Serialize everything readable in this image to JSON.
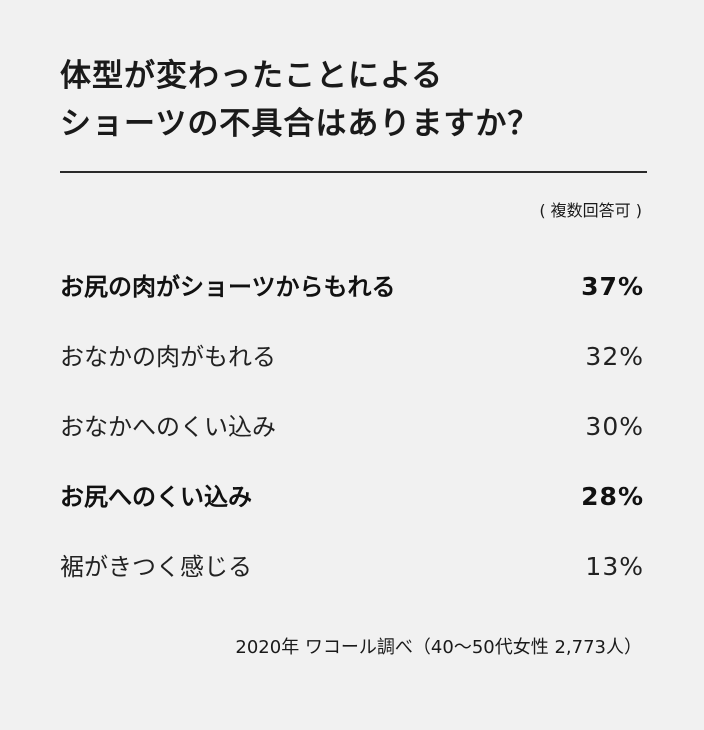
{
  "title": {
    "line1": "体型が変わったことによる",
    "line2": "ショーツの不具合はありますか？"
  },
  "note": "( 複数回答可 )",
  "source": "2020年 ワコール調べ（40〜50代女性 2,773人）",
  "chart_data": {
    "type": "table",
    "title": "体型が変わったことによるショーツの不具合はありますか？",
    "note": "( 複数回答可 )",
    "source": "2020年 ワコール調べ（40〜50代女性 2,773人）",
    "unit": "%",
    "rows": [
      {
        "label": "お尻の肉がショーツからもれる",
        "value": 37,
        "value_text": "37%",
        "bold": true
      },
      {
        "label": "おなかの肉がもれる",
        "value": 32,
        "value_text": "32%",
        "bold": false
      },
      {
        "label": "おなかへのくい込み",
        "value": 30,
        "value_text": "30%",
        "bold": false
      },
      {
        "label": "お尻へのくい込み",
        "value": 28,
        "value_text": "28%",
        "bold": true
      },
      {
        "label": "裾がきつく感じる",
        "value": 13,
        "value_text": "13%",
        "bold": false
      }
    ]
  }
}
